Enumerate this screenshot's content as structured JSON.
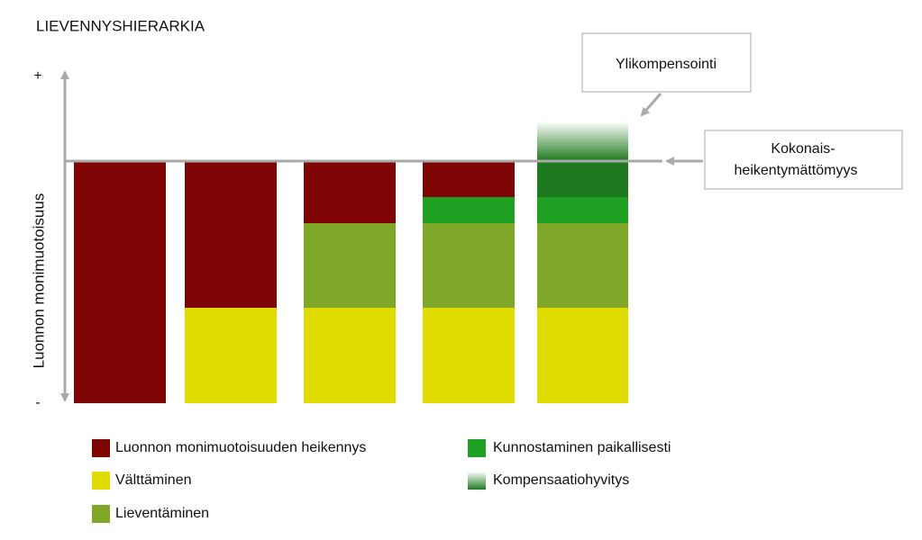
{
  "title": "LIEVENNYSHIERARKIA",
  "axis": {
    "label": "Luonnon monimuotoisuus",
    "top": "+",
    "bottom": "-"
  },
  "callouts": {
    "over": "Ylikompensointi",
    "balance": [
      "Kokonais-",
      "heikentymättömyys"
    ]
  },
  "legend": [
    "Luonnon monimuotoisuuden heikennys",
    "Välttäminen",
    "Lieventäminen",
    "Kunnostaminen paikallisesti",
    "Kompensaatiohyvitys"
  ]
}
